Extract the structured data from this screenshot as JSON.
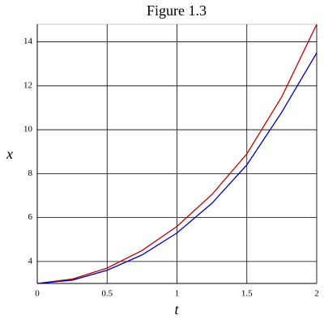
{
  "chart_data": {
    "type": "line",
    "title": "Figure 1.3",
    "x_label": "t",
    "y_label": "x",
    "x": [
      0,
      0.25,
      0.5,
      0.75,
      1,
      1.25,
      1.5,
      1.75,
      2
    ],
    "series": [
      {
        "color": "#c00000",
        "values": [
          3,
          3.2,
          3.7,
          4.5,
          5.6,
          7.05,
          8.9,
          11.5,
          14.8
        ]
      },
      {
        "color": "#0000c0",
        "values": [
          3,
          3.15,
          3.6,
          4.3,
          5.3,
          6.65,
          8.4,
          10.8,
          13.5
        ]
      }
    ],
    "xlim": [
      0,
      2
    ],
    "xticks": [
      0,
      0.5,
      1,
      1.5,
      2
    ],
    "ylim": [
      3,
      14.8
    ],
    "yticks": [
      4,
      6,
      8,
      10,
      12,
      14
    ],
    "grid": true
  }
}
